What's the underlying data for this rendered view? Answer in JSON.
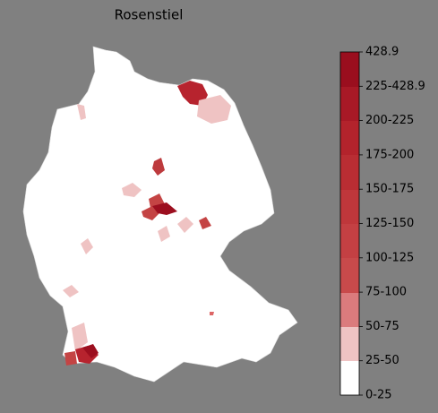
{
  "title": "Rosenstiel",
  "colorbar": {
    "labels": [
      "0-25",
      "25-50",
      "50-75",
      "75-100",
      "100-125",
      "125-150",
      "150-175",
      "175-200",
      "200-225",
      "225-428.9",
      "428.9"
    ]
  }
}
